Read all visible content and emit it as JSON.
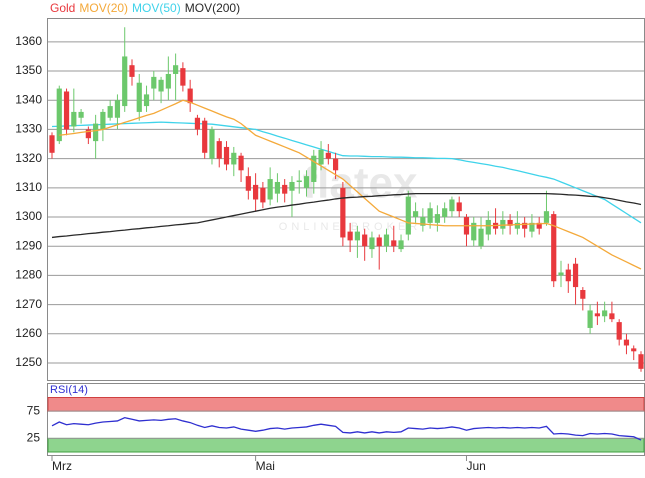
{
  "chart_data": [
    {
      "type": "candlestick",
      "categories": [
        "Mrz",
        null,
        null,
        null,
        null,
        null,
        null,
        null,
        null,
        null,
        null,
        null,
        null,
        null,
        null,
        null,
        null,
        null,
        null,
        null,
        null,
        null,
        null,
        null,
        null,
        null,
        null,
        null,
        "Mai",
        null,
        null,
        null,
        null,
        null,
        null,
        null,
        null,
        null,
        null,
        null,
        null,
        null,
        null,
        null,
        null,
        null,
        null,
        null,
        null,
        null,
        null,
        null,
        null,
        null,
        null,
        null,
        null,
        "Jun",
        null,
        null,
        null,
        null,
        null,
        null,
        null,
        null,
        null,
        null,
        null,
        null,
        null,
        null,
        null,
        null,
        null,
        null,
        null,
        null,
        null,
        null,
        null,
        null
      ],
      "ylim": [
        1244,
        1368
      ],
      "yticks": [
        1250,
        1260,
        1270,
        1280,
        1290,
        1300,
        1310,
        1320,
        1330,
        1340,
        1350,
        1360
      ],
      "grid": true,
      "series": [
        {
          "name": "Gold",
          "type": "candlestick",
          "color": "#e8383d",
          "up_color": "#6cc86c",
          "open": [
            1328,
            1326,
            1343,
            1331,
            1334,
            1330,
            1326,
            1330,
            1334,
            1334,
            1338,
            1352,
            1336,
            1338,
            1344,
            1343,
            1344,
            1349,
            1351,
            1344,
            1334,
            1333,
            1320,
            1326,
            1324,
            1318,
            1321,
            1314,
            1311,
            1310,
            1306,
            1308,
            1311,
            1309,
            1312,
            1310,
            1312,
            1318,
            1322,
            1320,
            1310,
            1295,
            1292,
            1294,
            1289,
            1293,
            1290,
            1292,
            1289,
            1294,
            1300,
            1297,
            1298,
            1298,
            1300,
            1302,
            1305,
            1300,
            1292,
            1290,
            1294,
            1298,
            1296,
            1299,
            1296,
            1298,
            1295,
            1298,
            1298,
            1301,
            1280,
            1282,
            1284,
            1275,
            1262,
            1267,
            1266,
            1267,
            1264,
            1258,
            1255,
            1253
          ],
          "high": [
            1329,
            1345,
            1344,
            1344,
            1337,
            1331,
            1335,
            1337,
            1340,
            1342,
            1365,
            1354,
            1349,
            1345,
            1350,
            1348,
            1355,
            1356,
            1353,
            1347,
            1335,
            1334,
            1331,
            1327,
            1326,
            1324,
            1322,
            1317,
            1315,
            1312,
            1317,
            1315,
            1313,
            1314,
            1316,
            1316,
            1323,
            1326,
            1325,
            1322,
            1312,
            1298,
            1297,
            1296,
            1295,
            1294,
            1296,
            1297,
            1294,
            1309,
            1305,
            1303,
            1305,
            1304,
            1305,
            1307,
            1307,
            1301,
            1300,
            1300,
            1302,
            1303,
            1302,
            1301,
            1302,
            1300,
            1301,
            1300,
            1309,
            1302,
            1285,
            1284,
            1286,
            1276,
            1270,
            1271,
            1271,
            1271,
            1265,
            1260,
            1256,
            1254
          ],
          "low": [
            1320,
            1325,
            1328,
            1329,
            1332,
            1325,
            1320,
            1326,
            1333,
            1330,
            1336,
            1345,
            1333,
            1336,
            1340,
            1339,
            1340,
            1340,
            1343,
            1336,
            1328,
            1320,
            1318,
            1317,
            1316,
            1314,
            1312,
            1306,
            1302,
            1303,
            1304,
            1305,
            1305,
            1300,
            1308,
            1307,
            1308,
            1316,
            1318,
            1313,
            1290,
            1288,
            1286,
            1285,
            1286,
            1282,
            1288,
            1288,
            1288,
            1292,
            1298,
            1295,
            1296,
            1295,
            1298,
            1300,
            1300,
            1290,
            1290,
            1289,
            1292,
            1294,
            1294,
            1294,
            1294,
            1293,
            1293,
            1294,
            1297,
            1276,
            1276,
            1274,
            1270,
            1268,
            1260,
            1263,
            1264,
            1264,
            1256,
            1253,
            1251,
            1247
          ],
          "close": [
            1322,
            1344,
            1330,
            1336,
            1336,
            1327,
            1332,
            1336,
            1338,
            1340,
            1355,
            1348,
            1346,
            1342,
            1348,
            1347,
            1349,
            1352,
            1345,
            1339,
            1330,
            1322,
            1330,
            1320,
            1318,
            1322,
            1316,
            1309,
            1306,
            1305,
            1313,
            1312,
            1308,
            1312,
            1312.5,
            1314,
            1321,
            1323,
            1320,
            1316,
            1293,
            1292,
            1295,
            1290,
            1293,
            1290,
            1294,
            1290,
            1292,
            1307,
            1302,
            1300,
            1303,
            1301,
            1303,
            1306,
            1302,
            1294,
            1298,
            1296,
            1299,
            1296,
            1299,
            1297,
            1298,
            1296,
            1298,
            1296,
            1302,
            1278,
            1281,
            1278,
            1276,
            1272,
            1268,
            1266,
            1268,
            1265,
            1258,
            1256,
            1254,
            1248
          ]
        },
        {
          "name": "MOV(20)",
          "type": "line",
          "color": "#f4a93a",
          "values": [
            null,
            1328.0,
            1328.3,
            1328.6,
            1329.0,
            1329.3,
            1329.6,
            1330.0,
            1330.8,
            1331.6,
            1332.4,
            1333.2,
            1334.0,
            1334.8,
            1335.5,
            1336.6,
            1337.7,
            1338.8,
            1340.0,
            1339.3,
            1338.3,
            1337.3,
            1336.3,
            1335.3,
            1334.3,
            1333.5,
            1332.0,
            1330.0,
            1328.0,
            1327.0,
            1326.0,
            1325.0,
            1324.0,
            1323.0,
            1322.0,
            1320.5,
            1319.0,
            1317.5,
            1316.0,
            1314.5,
            1313.0,
            1310.8,
            1308.6,
            1306.4,
            1304.2,
            1302.0,
            1301.0,
            1300.0,
            1299.0,
            1298.0,
            1297.8,
            1297.6,
            1297.4,
            1297.2,
            1297.0,
            1297.0,
            1297.0,
            1297.0,
            1297.0,
            1297.0,
            1297.0,
            1297.1,
            1297.2,
            1297.3,
            1297.4,
            1297.5,
            1297.6,
            1297.7,
            1297.8,
            1297.0,
            1296.0,
            1295.0,
            1294.0,
            1293.0,
            1291.5,
            1290.0,
            1288.5,
            1287.0,
            1285.8,
            1284.6,
            1283.4,
            1282.2
          ]
        },
        {
          "name": "MOV(50)",
          "type": "line",
          "color": "#3fd3ea",
          "values": [
            1331.0,
            1331.1,
            1331.2,
            1331.3,
            1331.4,
            1331.5,
            1331.6,
            1331.7,
            1331.8,
            1331.9,
            1332.0,
            1332.1,
            1332.2,
            1332.3,
            1332.4,
            1332.5,
            1332.4,
            1332.3,
            1332.2,
            1332.1,
            1332.0,
            1331.9,
            1331.8,
            1331.5,
            1331.2,
            1330.9,
            1330.6,
            1330.3,
            1330.0,
            1329.2,
            1328.5,
            1327.7,
            1327.0,
            1326.2,
            1325.5,
            1324.7,
            1324.0,
            1323.2,
            1322.5,
            1321.7,
            1321.0,
            1320.9,
            1320.9,
            1320.8,
            1320.7,
            1320.7,
            1320.6,
            1320.5,
            1320.5,
            1320.4,
            1320.3,
            1320.3,
            1320.2,
            1320.1,
            1320.1,
            1320.0,
            1319.6,
            1319.1,
            1318.7,
            1318.3,
            1317.9,
            1317.4,
            1317.0,
            1316.4,
            1315.9,
            1315.3,
            1314.7,
            1314.1,
            1313.6,
            1313.0,
            1312.0,
            1311.0,
            1310.0,
            1309.0,
            1308.0,
            1307.0,
            1306.0,
            1304.4,
            1302.8,
            1301.2,
            1299.6,
            1298.0
          ]
        },
        {
          "name": "MOV(200)",
          "type": "line",
          "color": "#2a2a2a",
          "values": [
            1293.0,
            1293.3,
            1293.5,
            1293.8,
            1294.0,
            1294.3,
            1294.5,
            1294.8,
            1295.0,
            1295.3,
            1295.5,
            1295.8,
            1296.0,
            1296.3,
            1296.5,
            1296.8,
            1297.0,
            1297.3,
            1297.5,
            1297.8,
            1298.0,
            1298.5,
            1299,
            1299.5,
            1300,
            1300.5,
            1301,
            1301.5,
            1302,
            1302.5,
            1303,
            1303.4,
            1303.7,
            1304.1,
            1304.4,
            1304.8,
            1305.1,
            1305.5,
            1305.8,
            1306.2,
            1306.5,
            1306.7,
            1306.8,
            1307,
            1307.1,
            1307.3,
            1307.4,
            1307.6,
            1307.7,
            1307.9,
            1308,
            1308,
            1308,
            1308,
            1308,
            1308,
            1308,
            1308,
            1308,
            1308,
            1308,
            1308,
            1308,
            1308,
            1308,
            1308,
            1308,
            1308,
            1308,
            1307.9,
            1307.8,
            1307.6,
            1307.5,
            1307.3,
            1307.1,
            1307,
            1306.6,
            1306.2,
            1305.7,
            1305.2,
            1304.8,
            1304.3
          ]
        }
      ]
    },
    {
      "type": "line",
      "ylim": [
        0,
        100
      ],
      "yticks": [
        25,
        75
      ],
      "overbought_color": "#f08a8a",
      "oversold_color": "#8ed48e",
      "series": [
        {
          "name": "RSI(14)",
          "color": "#2f2fd0",
          "values": [
            48,
            55,
            50,
            52,
            51,
            50,
            53,
            55,
            56,
            57,
            63,
            60,
            57,
            58,
            59,
            58,
            60,
            61,
            57,
            54,
            49,
            45,
            48,
            45,
            44,
            46,
            42,
            40,
            38,
            40,
            43,
            44,
            42,
            44,
            45,
            46,
            49,
            51,
            49,
            47,
            36,
            35,
            37,
            35,
            37,
            35,
            37,
            36,
            37,
            44,
            43,
            42,
            44,
            43,
            44,
            46,
            44,
            40,
            43,
            44,
            45,
            44,
            45,
            44,
            45,
            44,
            45,
            44,
            47,
            33,
            34,
            33,
            31,
            30,
            34,
            33,
            34,
            33,
            30,
            29,
            28,
            22
          ]
        }
      ]
    }
  ],
  "watermark": {
    "logo": "flatex",
    "tagline": "ONLINE BROKER"
  }
}
